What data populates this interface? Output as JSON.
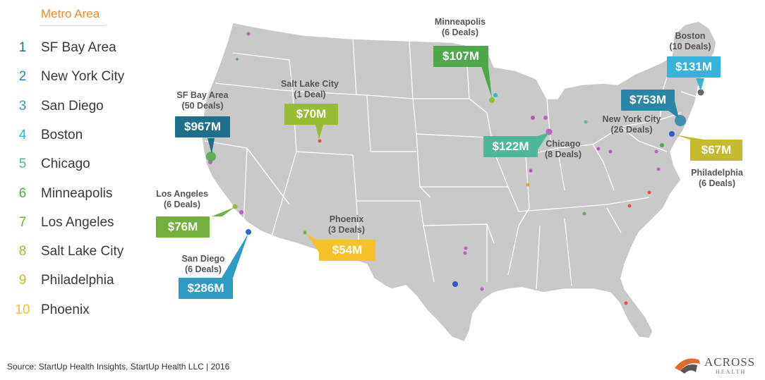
{
  "legend": {
    "title": "Metro Area",
    "items": [
      {
        "rank": "1",
        "name": "SF Bay Area",
        "color": "#1f6f8b"
      },
      {
        "rank": "2",
        "name": "New York City",
        "color": "#2a86a8"
      },
      {
        "rank": "3",
        "name": "San Diego",
        "color": "#2e9bc6"
      },
      {
        "rank": "4",
        "name": "Boston",
        "color": "#36b3d9"
      },
      {
        "rank": "5",
        "name": "Chicago",
        "color": "#4fb89a"
      },
      {
        "rank": "6",
        "name": "Minneapolis",
        "color": "#4ea84a"
      },
      {
        "rank": "7",
        "name": "Los Angeles",
        "color": "#72b23c"
      },
      {
        "rank": "8",
        "name": "Salt Lake City",
        "color": "#97bb32"
      },
      {
        "rank": "9",
        "name": "Philadelphia",
        "color": "#c4ba2e"
      },
      {
        "rank": "10",
        "name": "Phoenix",
        "color": "#f5c22b"
      }
    ]
  },
  "callouts": {
    "sf": {
      "city": "SF Bay Area",
      "deals": "(50 Deals)",
      "value": "$967M",
      "color": "#1f6f8b"
    },
    "nyc": {
      "city": "New York City",
      "deals": "(26 Deals)",
      "value": "$753M",
      "color": "#2a86a8"
    },
    "sd": {
      "city": "San Diego",
      "deals": "(6 Deals)",
      "value": "$286M",
      "color": "#2e9bc6"
    },
    "bos": {
      "city": "Boston",
      "deals": "(10 Deals)",
      "value": "$131M",
      "color": "#36b3d9"
    },
    "chi": {
      "city": "Chicago",
      "deals": "(8 Deals)",
      "value": "$122M",
      "color": "#4fb89a"
    },
    "min": {
      "city": "Minneapolis",
      "deals": "(6 Deals)",
      "value": "$107M",
      "color": "#4ea84a"
    },
    "la": {
      "city": "Los Angeles",
      "deals": "(6 Deals)",
      "value": "$76M",
      "color": "#72b23c"
    },
    "slc": {
      "city": "Salt Lake City",
      "deals": "(1 Deal)",
      "value": "$70M",
      "color": "#97bb32"
    },
    "phi": {
      "city": "Philadelphia",
      "deals": "(6 Deals)",
      "value": "$67M",
      "color": "#c4ba2e"
    },
    "phx": {
      "city": "Phoenix",
      "deals": "(3 Deals)",
      "value": "$54M",
      "color": "#f5c22b"
    }
  },
  "map": {
    "land_color": "#c9c9c9",
    "border_color": "#ffffff"
  },
  "source": "Source: StartUp Health Insights, StartUp Health LLC  |  2016",
  "logo": {
    "word": "ACROSS",
    "sub": "HEALTH"
  }
}
